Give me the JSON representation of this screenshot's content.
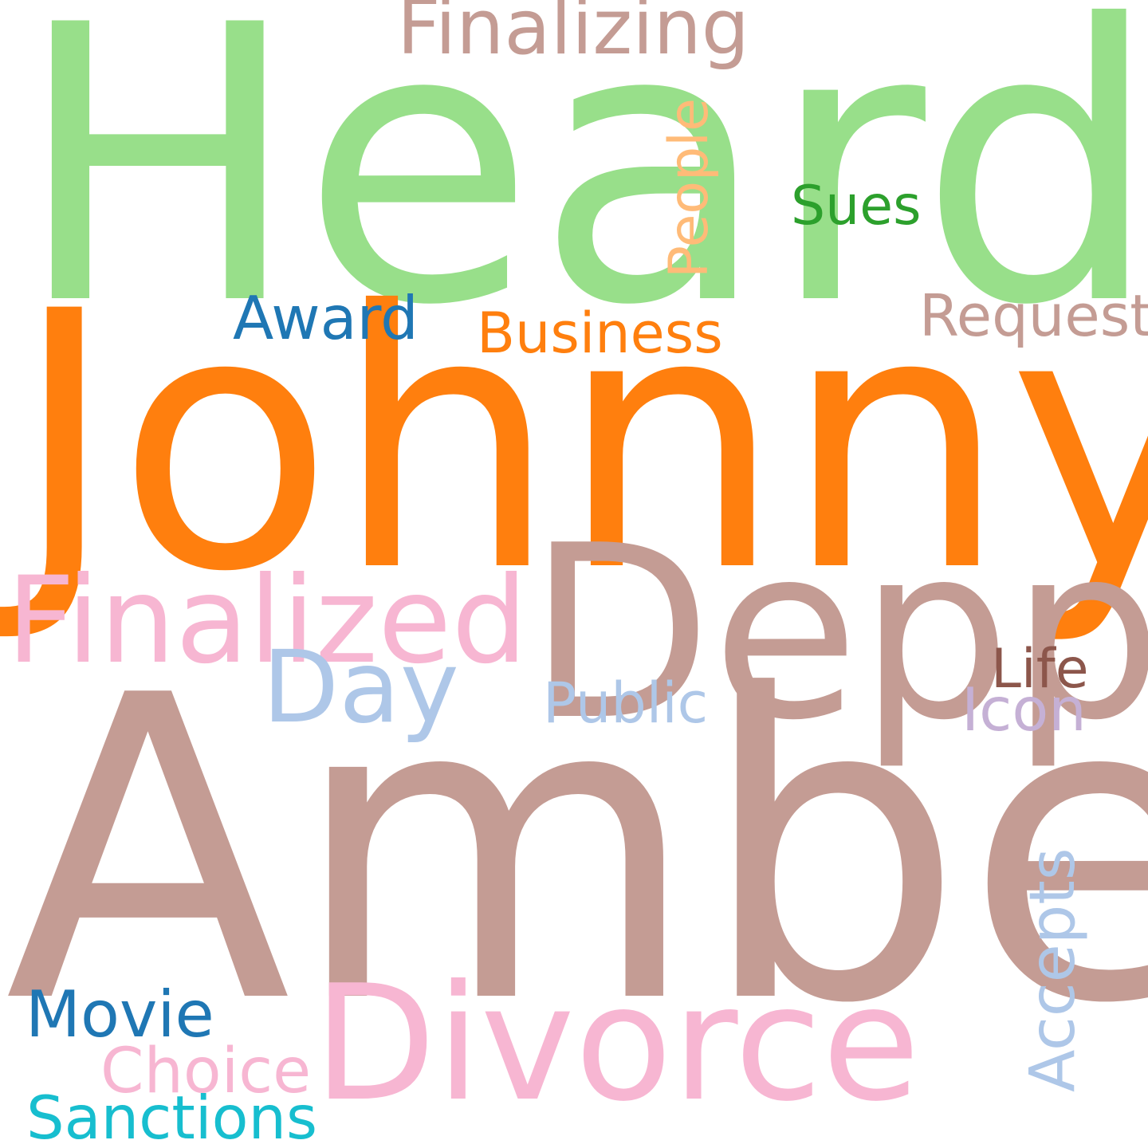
{
  "words": [
    {
      "key": "heard",
      "text": "Heard",
      "color": "#98df8a"
    },
    {
      "key": "johnny",
      "text": "Johnny",
      "color": "#ff7f0e"
    },
    {
      "key": "amber",
      "text": "Amber",
      "color": "#c49c94"
    },
    {
      "key": "depp",
      "text": "Depp",
      "color": "#c49c94"
    },
    {
      "key": "divorce",
      "text": "Divorce",
      "color": "#f7b6d2"
    },
    {
      "key": "finalized",
      "text": "Finalized",
      "color": "#f7b6d2"
    },
    {
      "key": "finalizing",
      "text": "Finalizing",
      "color": "#c49c94"
    },
    {
      "key": "day",
      "text": "Day",
      "color": "#aec7e8"
    },
    {
      "key": "people",
      "text": "People",
      "color": "#ffbb78"
    },
    {
      "key": "sues",
      "text": "Sues",
      "color": "#2ca02c"
    },
    {
      "key": "award",
      "text": "Award",
      "color": "#1f77b4"
    },
    {
      "key": "business",
      "text": "Business",
      "color": "#ff7f0e"
    },
    {
      "key": "request",
      "text": "Request",
      "color": "#c49c94"
    },
    {
      "key": "life",
      "text": "Life",
      "color": "#8c564b"
    },
    {
      "key": "icon",
      "text": "Icon",
      "color": "#c5b0d5"
    },
    {
      "key": "public",
      "text": "Public",
      "color": "#aec7e8"
    },
    {
      "key": "accepts",
      "text": "Accepts",
      "color": "#aec7e8"
    },
    {
      "key": "movie",
      "text": "Movie",
      "color": "#1f77b4"
    },
    {
      "key": "choice",
      "text": "Choice",
      "color": "#f7b6d2"
    },
    {
      "key": "sanctions",
      "text": "Sanctions",
      "color": "#17becf"
    }
  ]
}
